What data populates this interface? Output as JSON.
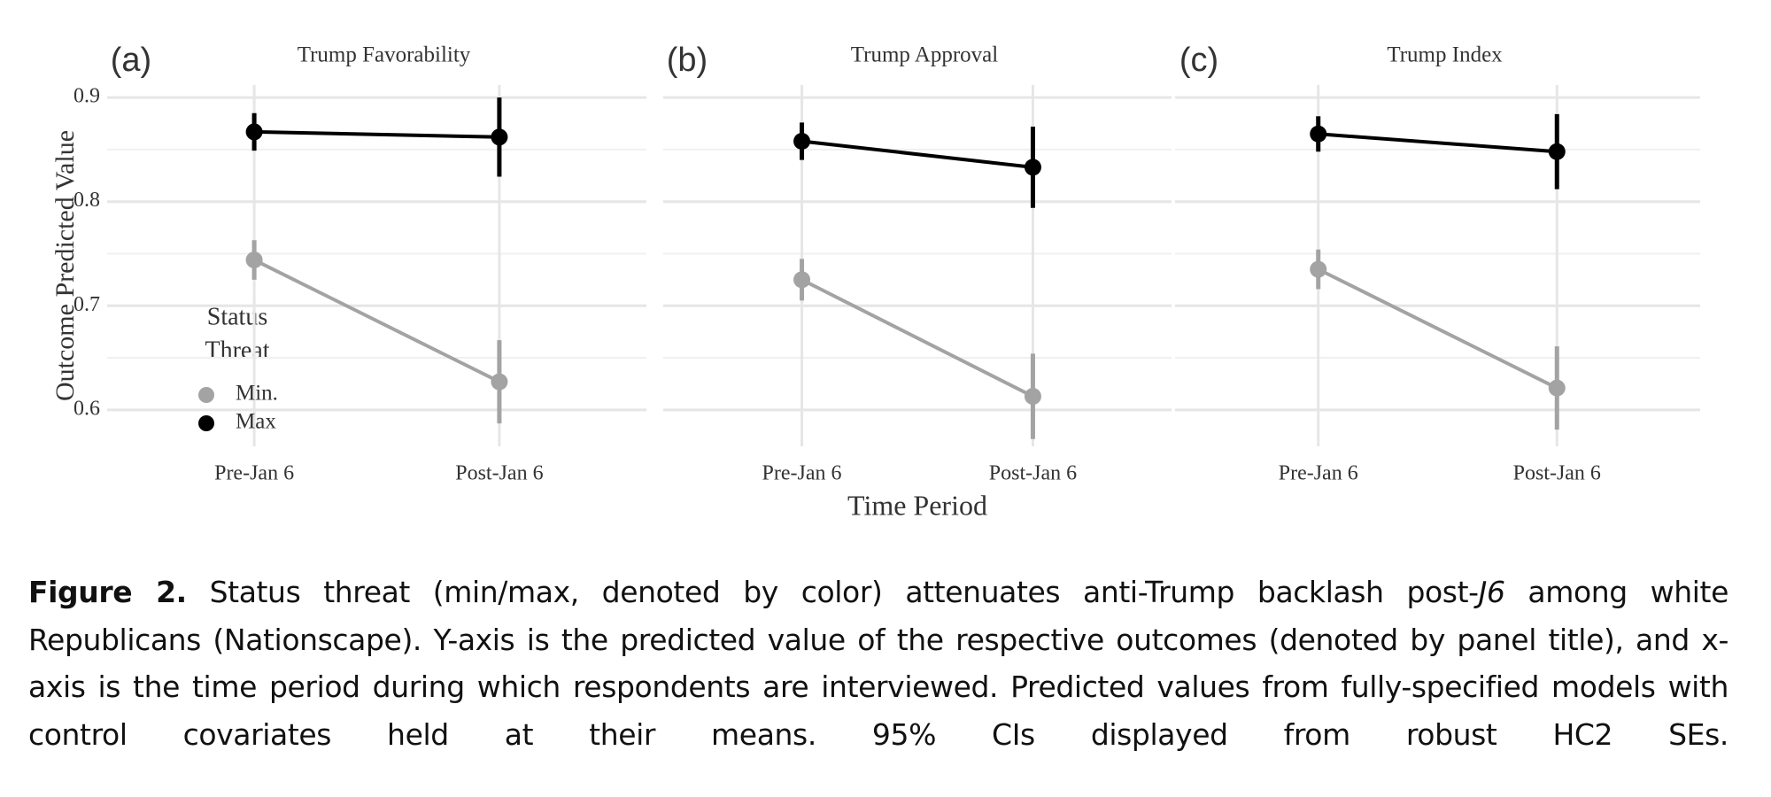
{
  "chart_data": [
    {
      "type": "line",
      "panel_label": "(a)",
      "title": "Trump Favorability",
      "categories": [
        "Pre-Jan 6",
        "Post-Jan 6"
      ],
      "series": [
        {
          "name": "Min.",
          "color": "#a3a3a3",
          "values": [
            0.744,
            0.627
          ],
          "errors": [
            0.019,
            0.04
          ]
        },
        {
          "name": "Max",
          "color": "#000000",
          "values": [
            0.867,
            0.862
          ],
          "errors": [
            0.018,
            0.038
          ]
        }
      ],
      "ylim": [
        0.565,
        0.912
      ],
      "yticks": [
        0.6,
        0.7,
        0.8,
        0.9
      ],
      "minor_yticks": [
        0.65,
        0.75,
        0.85
      ],
      "grid": true
    },
    {
      "type": "line",
      "panel_label": "(b)",
      "title": "Trump Approval",
      "categories": [
        "Pre-Jan 6",
        "Post-Jan 6"
      ],
      "series": [
        {
          "name": "Min.",
          "color": "#a3a3a3",
          "values": [
            0.725,
            0.613
          ],
          "errors": [
            0.02,
            0.041
          ]
        },
        {
          "name": "Max",
          "color": "#000000",
          "values": [
            0.858,
            0.833
          ],
          "errors": [
            0.018,
            0.039
          ]
        }
      ],
      "ylim": [
        0.565,
        0.912
      ],
      "yticks": [
        0.6,
        0.7,
        0.8,
        0.9
      ],
      "minor_yticks": [
        0.65,
        0.75,
        0.85
      ],
      "grid": true
    },
    {
      "type": "line",
      "panel_label": "(c)",
      "title": "Trump Index",
      "categories": [
        "Pre-Jan 6",
        "Post-Jan 6"
      ],
      "series": [
        {
          "name": "Min.",
          "color": "#a3a3a3",
          "values": [
            0.735,
            0.621
          ],
          "errors": [
            0.019,
            0.04
          ]
        },
        {
          "name": "Max",
          "color": "#000000",
          "values": [
            0.865,
            0.848
          ],
          "errors": [
            0.017,
            0.036
          ]
        }
      ],
      "ylim": [
        0.565,
        0.912
      ],
      "yticks": [
        0.6,
        0.7,
        0.8,
        0.9
      ],
      "minor_yticks": [
        0.65,
        0.75,
        0.85
      ],
      "grid": true
    }
  ],
  "y_label": "Outcome Predicted Value",
  "x_label": "Time Period",
  "legend_title": [
    "Status",
    "Threat"
  ],
  "caption": {
    "label": "Figure 2.",
    "text_before": "Status threat (min/max, denoted by color) attenuates anti-Trump backlash post-",
    "italic": "J6",
    "text_after": " among white Republicans (Nationscape). Y-axis is the predicted value of the respective outcomes (denoted by panel title), and x-axis is the time period during which respondents are interviewed. Predicted values from fully-specified models with control covariates held at their means. 95% CIs displayed from robust HC2 SEs."
  }
}
